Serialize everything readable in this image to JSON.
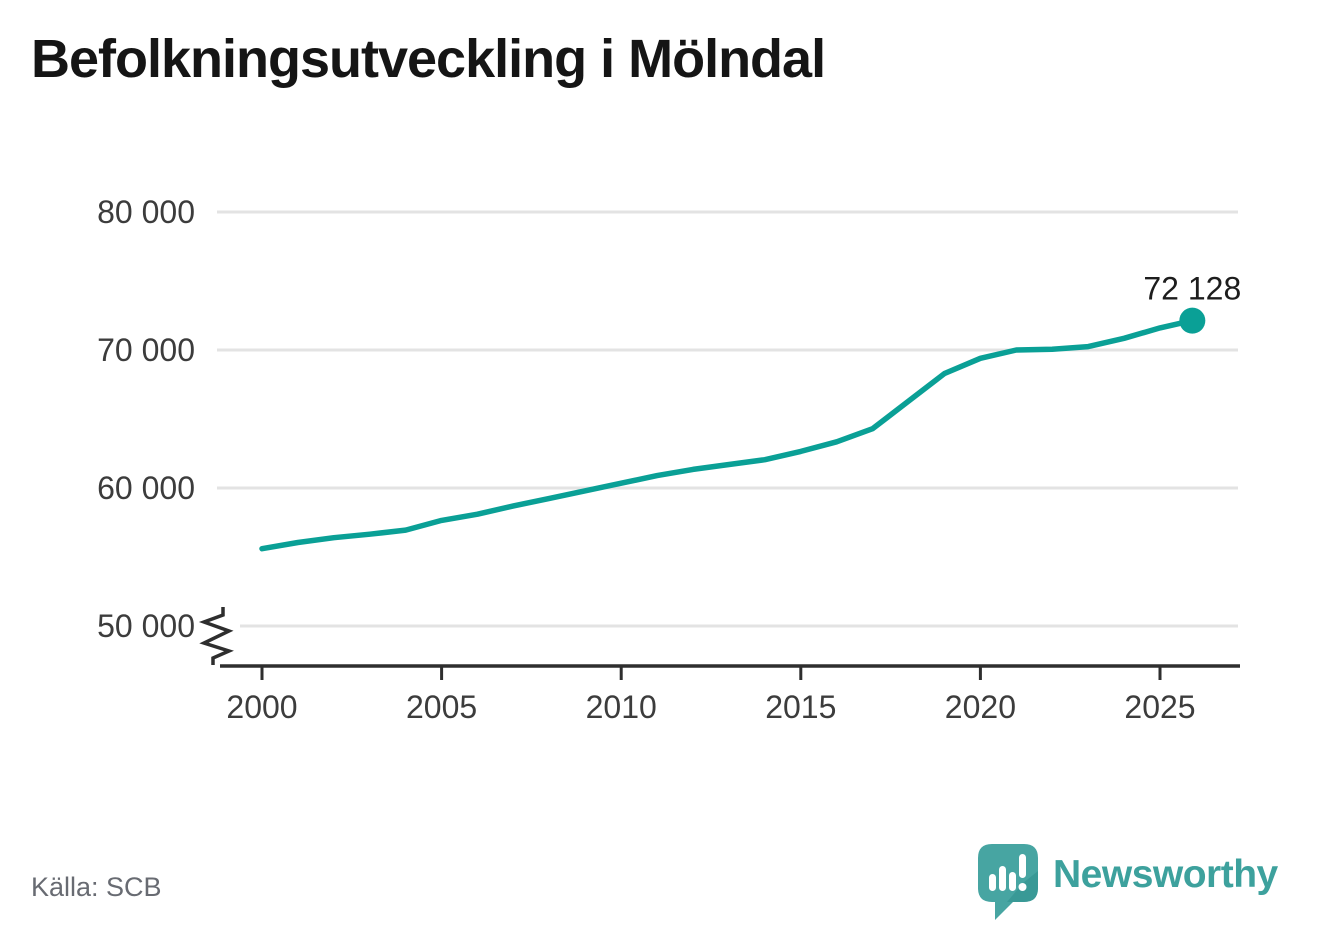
{
  "title": "Befolkningsutveckling i Mölndal",
  "footer": {
    "source": "Källa: SCB",
    "brand": "Newsworthy"
  },
  "colors": {
    "line": "#0aa096",
    "grid": "#e3e3e3",
    "axis": "#2e2e2e",
    "tick_text": "#3c3c3c",
    "annotation": "#1d1d1d",
    "source_text": "#686b72",
    "brand_text": "#3da19d",
    "logo": "#47a5a2",
    "logo_shade": "#2e8f8c"
  },
  "chart_data": {
    "type": "line",
    "title": "Befolkningsutveckling i Mölndal",
    "source": "Källa: SCB",
    "x": [
      2000,
      2001,
      2002,
      2003,
      2004,
      2005,
      2006,
      2007,
      2008,
      2009,
      2010,
      2011,
      2012,
      2013,
      2014,
      2015,
      2016,
      2017,
      2018,
      2019,
      2020,
      2021,
      2022,
      2023,
      2024,
      2025,
      2025.9
    ],
    "values": [
      55600,
      56050,
      56400,
      56650,
      56950,
      57650,
      58100,
      58700,
      59250,
      59800,
      60350,
      60900,
      61350,
      61700,
      62050,
      62650,
      63350,
      64300,
      66300,
      68300,
      69400,
      70000,
      70050,
      70250,
      70850,
      71600,
      72128
    ],
    "end_value": 72128,
    "end_label": "72 128",
    "xticks": [
      {
        "value": 2000,
        "label": "2000"
      },
      {
        "value": 2005,
        "label": "2005"
      },
      {
        "value": 2010,
        "label": "2010"
      },
      {
        "value": 2015,
        "label": "2015"
      },
      {
        "value": 2020,
        "label": "2020"
      },
      {
        "value": 2025,
        "label": "2025"
      }
    ],
    "yticks": [
      {
        "value": 50000,
        "label": "50 000"
      },
      {
        "value": 60000,
        "label": "60 000"
      },
      {
        "value": 70000,
        "label": "70 000"
      },
      {
        "value": 80000,
        "label": "80 000"
      }
    ],
    "ylim": [
      50000,
      80000
    ],
    "xlabel": "",
    "ylabel": "",
    "grid": "horizontal",
    "legend": "none",
    "axis_break": true
  }
}
